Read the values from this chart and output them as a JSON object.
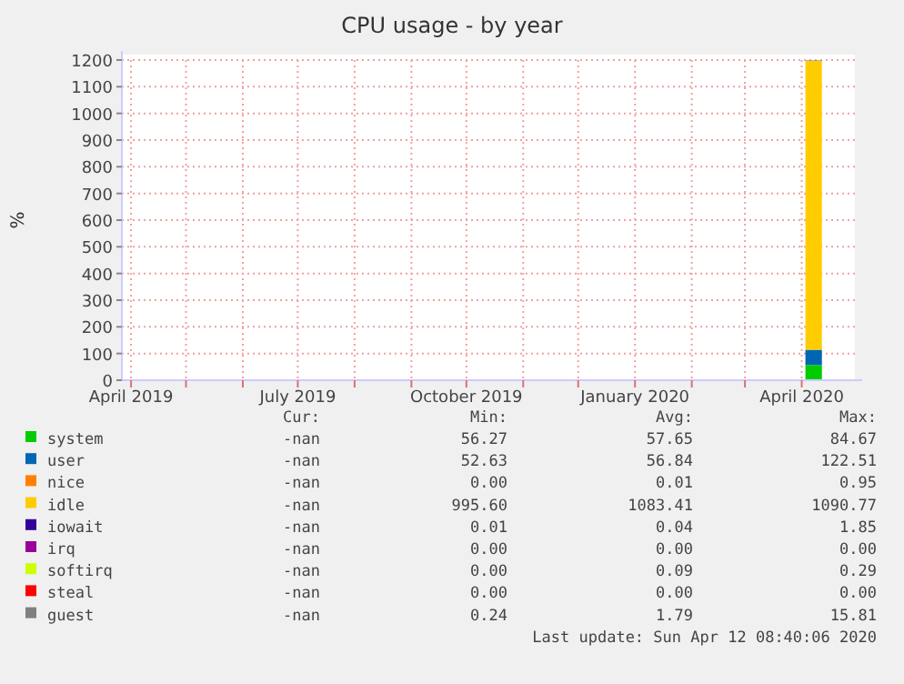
{
  "chart_data": {
    "type": "area",
    "title": "CPU usage - by year",
    "ylabel": "%",
    "stacked": true,
    "grid": true,
    "legend": "bottom",
    "x": [
      "2020-04-03",
      "2020-04-08",
      "2020-04-12"
    ],
    "xlim": [
      "2019-03-27",
      "2020-04-30"
    ],
    "xticks": [
      {
        "value": "2019-04-01",
        "label": "April 2019"
      },
      {
        "value": "2019-05-01",
        "label": null
      },
      {
        "value": "2019-06-01",
        "label": null
      },
      {
        "value": "2019-07-01",
        "label": "July 2019"
      },
      {
        "value": "2019-08-01",
        "label": null
      },
      {
        "value": "2019-09-01",
        "label": null
      },
      {
        "value": "2019-10-01",
        "label": "October 2019"
      },
      {
        "value": "2019-11-01",
        "label": null
      },
      {
        "value": "2019-12-01",
        "label": null
      },
      {
        "value": "2020-01-01",
        "label": "January 2020"
      },
      {
        "value": "2020-02-01",
        "label": null
      },
      {
        "value": "2020-03-01",
        "label": null
      },
      {
        "value": "2020-04-01",
        "label": "April 2020"
      }
    ],
    "ylim": [
      0,
      1200
    ],
    "yticks": [
      0,
      100,
      200,
      300,
      400,
      500,
      600,
      700,
      800,
      900,
      1000,
      1100,
      1200
    ],
    "series": [
      {
        "name": "system",
        "color": "#00cc00",
        "values": [
          57,
          57,
          57
        ]
      },
      {
        "name": "user",
        "color": "#0066b3",
        "values": [
          57,
          57,
          57
        ]
      },
      {
        "name": "nice",
        "color": "#ff8000",
        "values": [
          null,
          null,
          null
        ]
      },
      {
        "name": "idle",
        "color": "#ffcc00",
        "values": [
          1083,
          1083,
          1083
        ]
      },
      {
        "name": "iowait",
        "color": "#330099",
        "values": [
          null,
          null,
          null
        ]
      },
      {
        "name": "irq",
        "color": "#990099",
        "values": [
          null,
          null,
          null
        ]
      },
      {
        "name": "softirq",
        "color": "#ccff00",
        "values": [
          null,
          null,
          null
        ]
      },
      {
        "name": "steal",
        "color": "#ff0000",
        "values": [
          null,
          null,
          null
        ]
      },
      {
        "name": "guest",
        "color": "#808080",
        "values": [
          2,
          2,
          2
        ]
      }
    ],
    "annotations": [
      "Cur:",
      "Min:",
      "Avg:",
      "Max:",
      "-nan",
      "56.27",
      "57.65",
      "84.67",
      "-nan",
      "52.63",
      "56.84",
      "122.51",
      "-nan",
      "0.00",
      "0.01",
      "0.95",
      "-nan",
      "995.60",
      "1083.41",
      "1090.77",
      "-nan",
      "0.01",
      "0.04",
      "1.85",
      "-nan",
      "0.00",
      "0.00",
      "0.00",
      "-nan",
      "0.00",
      "0.09",
      "0.29",
      "-nan",
      "0.00",
      "0.00",
      "0.00",
      "-nan",
      "0.24",
      "1.79",
      "15.81",
      "Last update: Sun Apr 12 08:40:06 2020"
    ]
  }
}
